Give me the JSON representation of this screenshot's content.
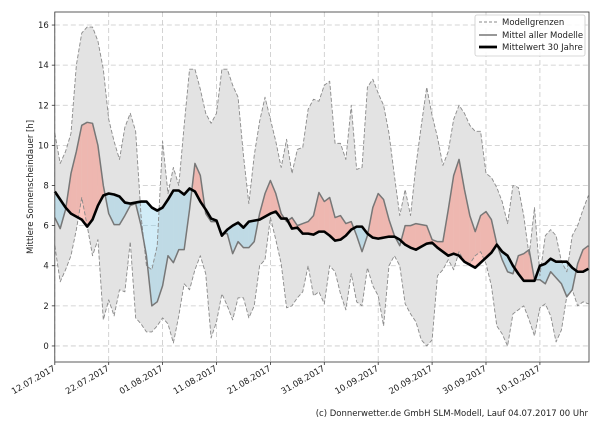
{
  "chart_data": {
    "type": "area",
    "ylabel": "Mittlere Sonnenscheindauer [h]",
    "xlabel": "",
    "ylim": [
      -0.8,
      16.65
    ],
    "yticks": [
      0,
      2,
      4,
      6,
      8,
      10,
      12,
      14,
      16
    ],
    "xtick_labels": [
      "12.07.2017",
      "22.07.2017",
      "01.08.2017",
      "11.08.2017",
      "21.08.2017",
      "31.08.2017",
      "10.09.2017",
      "20.09.2017",
      "30.09.2017",
      "10.10.2017"
    ],
    "grid": true,
    "legend_position": "top-right",
    "footer": "(c) Donnerwetter.de GmbH SLM-Modell, Lauf 04.07.2017 00 Uhr",
    "colors": {
      "band": "#e3e3e3",
      "bounds": "#8a8a8a",
      "model_mean": "#777777",
      "climate_mean": "#000000",
      "above": "#fa8072",
      "below": "#87ceeb"
    },
    "x": [
      "12.07",
      "13.07",
      "14.07",
      "15.07",
      "16.07",
      "17.07",
      "18.07",
      "19.07",
      "20.07",
      "21.07",
      "22.07",
      "23.07",
      "24.07",
      "25.07",
      "26.07",
      "27.07",
      "28.07",
      "29.07",
      "30.07",
      "31.07",
      "01.08",
      "02.08",
      "03.08",
      "04.08",
      "05.08",
      "06.08",
      "07.08",
      "08.08",
      "09.08",
      "10.08",
      "11.08",
      "12.08",
      "13.08",
      "14.08",
      "15.08",
      "16.08",
      "17.08",
      "18.08",
      "19.08",
      "20.08",
      "21.08",
      "22.08",
      "23.08",
      "24.08",
      "25.08",
      "26.08",
      "27.08",
      "28.08",
      "29.08",
      "30.08",
      "31.08",
      "01.09",
      "02.09",
      "03.09",
      "04.09",
      "05.09",
      "06.09",
      "07.09",
      "08.09",
      "09.09",
      "10.09",
      "11.09",
      "12.09",
      "13.09",
      "14.09",
      "15.09",
      "16.09",
      "17.09",
      "18.09",
      "19.09",
      "20.09",
      "21.09",
      "22.09",
      "23.09",
      "24.09",
      "25.09",
      "26.09",
      "27.09",
      "28.09",
      "29.09",
      "30.09",
      "01.10",
      "02.10",
      "03.10",
      "04.10",
      "05.10",
      "06.10",
      "07.10",
      "08.10",
      "09.10",
      "10.10",
      "11.10",
      "12.10",
      "13.10",
      "14.10",
      "15.10",
      "16.10",
      "17.10",
      "18.10",
      "19.10"
    ],
    "series": [
      {
        "name": "Modellgrenzen",
        "role": "upper",
        "values": [
          10.6,
          9.1,
          9.7,
          10.6,
          14.0,
          15.6,
          15.9,
          15.9,
          15.2,
          13.8,
          11.3,
          10.2,
          9.3,
          10.9,
          11.6,
          10.7,
          6.5,
          4.0,
          3.8,
          5.0,
          10.2,
          7.6,
          8.9,
          8.0,
          11.0,
          13.8,
          13.8,
          12.8,
          11.6,
          11.1,
          11.6,
          13.8,
          13.8,
          13.0,
          12.4,
          9.5,
          7.1,
          9.5,
          11.2,
          12.4,
          11.3,
          10.2,
          8.9,
          10.3,
          8.6,
          9.8,
          9.9,
          11.8,
          12.3,
          12.2,
          13.0,
          13.2,
          10.1,
          10.1,
          9.3,
          12.0,
          8.8,
          8.9,
          12.9,
          13.3,
          12.6,
          12.0,
          10.6,
          8.5,
          6.5,
          7.8,
          6.5,
          9.0,
          11.0,
          12.9,
          11.5,
          10.4,
          9.0,
          9.7,
          11.3,
          12.0,
          11.6,
          11.0,
          10.7,
          10.7,
          8.6,
          8.4,
          7.9,
          7.2,
          6.1,
          8.0,
          7.9,
          6.5,
          4.5,
          6.9,
          3.5,
          5.5,
          5.8,
          5.5,
          4.2,
          3.7,
          5.5,
          6.0,
          6.8,
          7.5
        ]
      },
      {
        "name": "Modellgrenzen",
        "role": "lower",
        "values": [
          5.0,
          3.2,
          3.8,
          4.5,
          5.8,
          7.4,
          6.0,
          4.5,
          5.3,
          1.3,
          2.3,
          1.5,
          2.8,
          2.7,
          5.2,
          1.4,
          1.1,
          0.7,
          0.7,
          1.0,
          1.4,
          1.1,
          0.15,
          1.5,
          3.1,
          2.8,
          3.8,
          4.5,
          3.6,
          0.4,
          1.2,
          2.6,
          2.0,
          1.3,
          2.4,
          2.4,
          1.4,
          2.0,
          4.0,
          4.3,
          6.4,
          5.3,
          4.1,
          1.9,
          2.0,
          2.4,
          2.7,
          4.0,
          2.5,
          2.7,
          2.1,
          4.0,
          3.7,
          2.6,
          1.8,
          3.6,
          2.2,
          2.0,
          3.9,
          3.0,
          2.5,
          1.0,
          4.0,
          4.5,
          4.0,
          2.1,
          1.6,
          1.2,
          0.3,
          0.0,
          0.3,
          3.5,
          3.8,
          4.3,
          3.8,
          4.7,
          4.2,
          4.1,
          4.5,
          4.7,
          4.1,
          3.0,
          1.0,
          0.6,
          0.0,
          1.6,
          1.8,
          2.0,
          1.3,
          0.5,
          1.9,
          2.1,
          1.5,
          0.2,
          0.8,
          2.5,
          2.8,
          2.0,
          2.2,
          2.1
        ]
      },
      {
        "name": "Mittel aller Modelle",
        "role": "model_mean",
        "values": [
          6.4,
          5.85,
          6.8,
          8.6,
          9.7,
          11.0,
          11.15,
          11.1,
          10.0,
          8.0,
          6.6,
          6.05,
          6.05,
          6.5,
          7.0,
          7.1,
          6.0,
          4.5,
          2.0,
          2.2,
          3.0,
          4.5,
          4.15,
          4.8,
          4.8,
          6.8,
          9.1,
          8.5,
          6.6,
          6.2,
          6.2,
          5.6,
          5.6,
          4.6,
          5.2,
          4.9,
          4.9,
          5.2,
          6.6,
          7.6,
          8.25,
          7.6,
          6.6,
          6.2,
          6.4,
          6.0,
          6.1,
          6.2,
          6.5,
          7.65,
          7.2,
          7.4,
          6.4,
          6.5,
          6.1,
          6.2,
          5.5,
          4.7,
          5.5,
          6.9,
          7.6,
          7.3,
          6.3,
          5.5,
          5.0,
          6.0,
          6.0,
          6.1,
          6.05,
          6.0,
          5.3,
          5.2,
          5.2,
          6.8,
          8.5,
          9.3,
          7.8,
          6.5,
          5.7,
          6.5,
          6.7,
          6.3,
          5.1,
          4.3,
          3.7,
          3.6,
          4.5,
          4.6,
          4.8,
          3.3,
          3.3,
          3.1,
          3.7,
          3.4,
          3.1,
          2.45,
          2.8,
          4.1,
          4.8,
          5.0
        ]
      },
      {
        "name": "Mittelwert 30 Jahre",
        "role": "climate_mean",
        "values": [
          7.7,
          7.3,
          6.9,
          6.6,
          6.45,
          6.3,
          5.95,
          6.3,
          7.0,
          7.5,
          7.6,
          7.55,
          7.45,
          7.15,
          7.1,
          7.15,
          7.2,
          7.2,
          6.9,
          6.75,
          6.9,
          7.3,
          7.75,
          7.75,
          7.55,
          7.85,
          7.7,
          7.2,
          6.8,
          6.35,
          6.25,
          5.5,
          5.8,
          6.0,
          6.15,
          5.9,
          6.2,
          6.25,
          6.3,
          6.45,
          6.6,
          6.7,
          6.35,
          6.35,
          5.85,
          5.9,
          5.6,
          5.6,
          5.55,
          5.7,
          5.7,
          5.5,
          5.25,
          5.3,
          5.5,
          5.8,
          5.95,
          5.95,
          5.6,
          5.4,
          5.35,
          5.4,
          5.45,
          5.45,
          5.3,
          5.05,
          4.9,
          4.8,
          4.95,
          5.1,
          5.15,
          4.9,
          4.7,
          4.5,
          4.6,
          4.5,
          4.2,
          4.05,
          3.9,
          4.15,
          4.4,
          4.65,
          5.05,
          4.7,
          4.5,
          4.0,
          3.6,
          3.25,
          3.25,
          3.25,
          4.0,
          4.1,
          4.35,
          4.2,
          4.2,
          4.2,
          3.9,
          3.7,
          3.7,
          3.85
        ]
      }
    ]
  }
}
